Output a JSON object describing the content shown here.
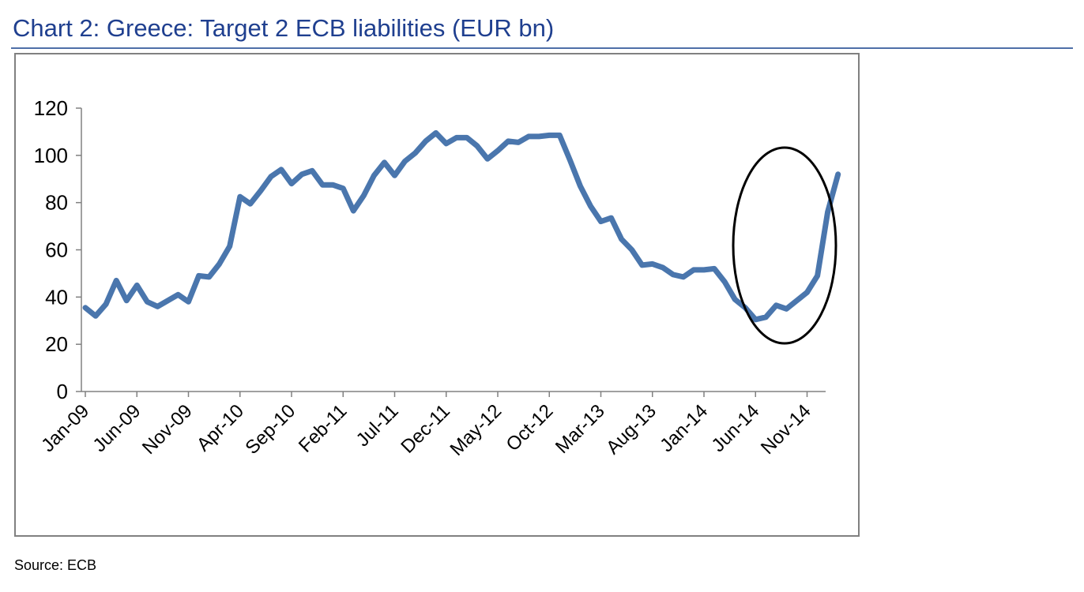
{
  "title": "Chart 2: Greece: Target 2 ECB liabilities (EUR bn)",
  "source": "Source: ECB",
  "colors": {
    "line": "#4a76ad",
    "title": "#1f3f8f",
    "axis": "#808080",
    "annotation": "#000000"
  },
  "annotation": {
    "shape": "ellipse",
    "highlights": "Jun-14 to Feb-15 surge"
  },
  "chart_data": {
    "type": "line",
    "title": "Chart 2: Greece: Target 2 ECB liabilities (EUR bn)",
    "xlabel": "",
    "ylabel": "",
    "ylim": [
      0,
      120
    ],
    "yticks": [
      0,
      20,
      40,
      60,
      80,
      100,
      120
    ],
    "grid": false,
    "legend": "none",
    "xtick_labels": [
      "Jan-09",
      "Jun-09",
      "Nov-09",
      "Apr-10",
      "Sep-10",
      "Feb-11",
      "Jul-11",
      "Dec-11",
      "May-12",
      "Oct-12",
      "Mar-13",
      "Aug-13",
      "Jan-14",
      "Jun-14",
      "Nov-14"
    ],
    "x": [
      "Jan-09",
      "Feb-09",
      "Mar-09",
      "Apr-09",
      "May-09",
      "Jun-09",
      "Jul-09",
      "Aug-09",
      "Sep-09",
      "Oct-09",
      "Nov-09",
      "Dec-09",
      "Jan-10",
      "Feb-10",
      "Mar-10",
      "Apr-10",
      "May-10",
      "Jun-10",
      "Jul-10",
      "Aug-10",
      "Sep-10",
      "Oct-10",
      "Nov-10",
      "Dec-10",
      "Jan-11",
      "Feb-11",
      "Mar-11",
      "Apr-11",
      "May-11",
      "Jun-11",
      "Jul-11",
      "Aug-11",
      "Sep-11",
      "Oct-11",
      "Nov-11",
      "Dec-11",
      "Jan-12",
      "Feb-12",
      "Mar-12",
      "Apr-12",
      "May-12",
      "Jun-12",
      "Jul-12",
      "Aug-12",
      "Sep-12",
      "Oct-12",
      "Nov-12",
      "Dec-12",
      "Jan-13",
      "Feb-13",
      "Mar-13",
      "Apr-13",
      "May-13",
      "Jun-13",
      "Jul-13",
      "Aug-13",
      "Sep-13",
      "Oct-13",
      "Nov-13",
      "Dec-13",
      "Jan-14",
      "Feb-14",
      "Mar-14",
      "Apr-14",
      "May-14",
      "Jun-14",
      "Jul-14",
      "Aug-14",
      "Sep-14",
      "Oct-14",
      "Nov-14",
      "Dec-14",
      "Jan-15",
      "Feb-15"
    ],
    "series": [
      {
        "name": "Target 2 ECB liabilities",
        "values": [
          35.5,
          32,
          37,
          47,
          38.5,
          45,
          38,
          36,
          38.5,
          41,
          38,
          49,
          48.5,
          54,
          61.5,
          82.5,
          79.5,
          85,
          91,
          94,
          88,
          92,
          93.5,
          87.5,
          87.5,
          86,
          76.5,
          83,
          91.5,
          97,
          91.5,
          97.5,
          101,
          106,
          109.5,
          105,
          107.5,
          107.5,
          104,
          98.5,
          102,
          106,
          105.5,
          108,
          108,
          108.5,
          108.5,
          98,
          87,
          78.5,
          72,
          73.5,
          64.5,
          60,
          53.5,
          54,
          52.5,
          49.5,
          48.5,
          51.5,
          51.5,
          52,
          46.5,
          39,
          35.5,
          30.5,
          31.5,
          36.5,
          35,
          38.5,
          42,
          49,
          76,
          92
        ]
      }
    ]
  }
}
